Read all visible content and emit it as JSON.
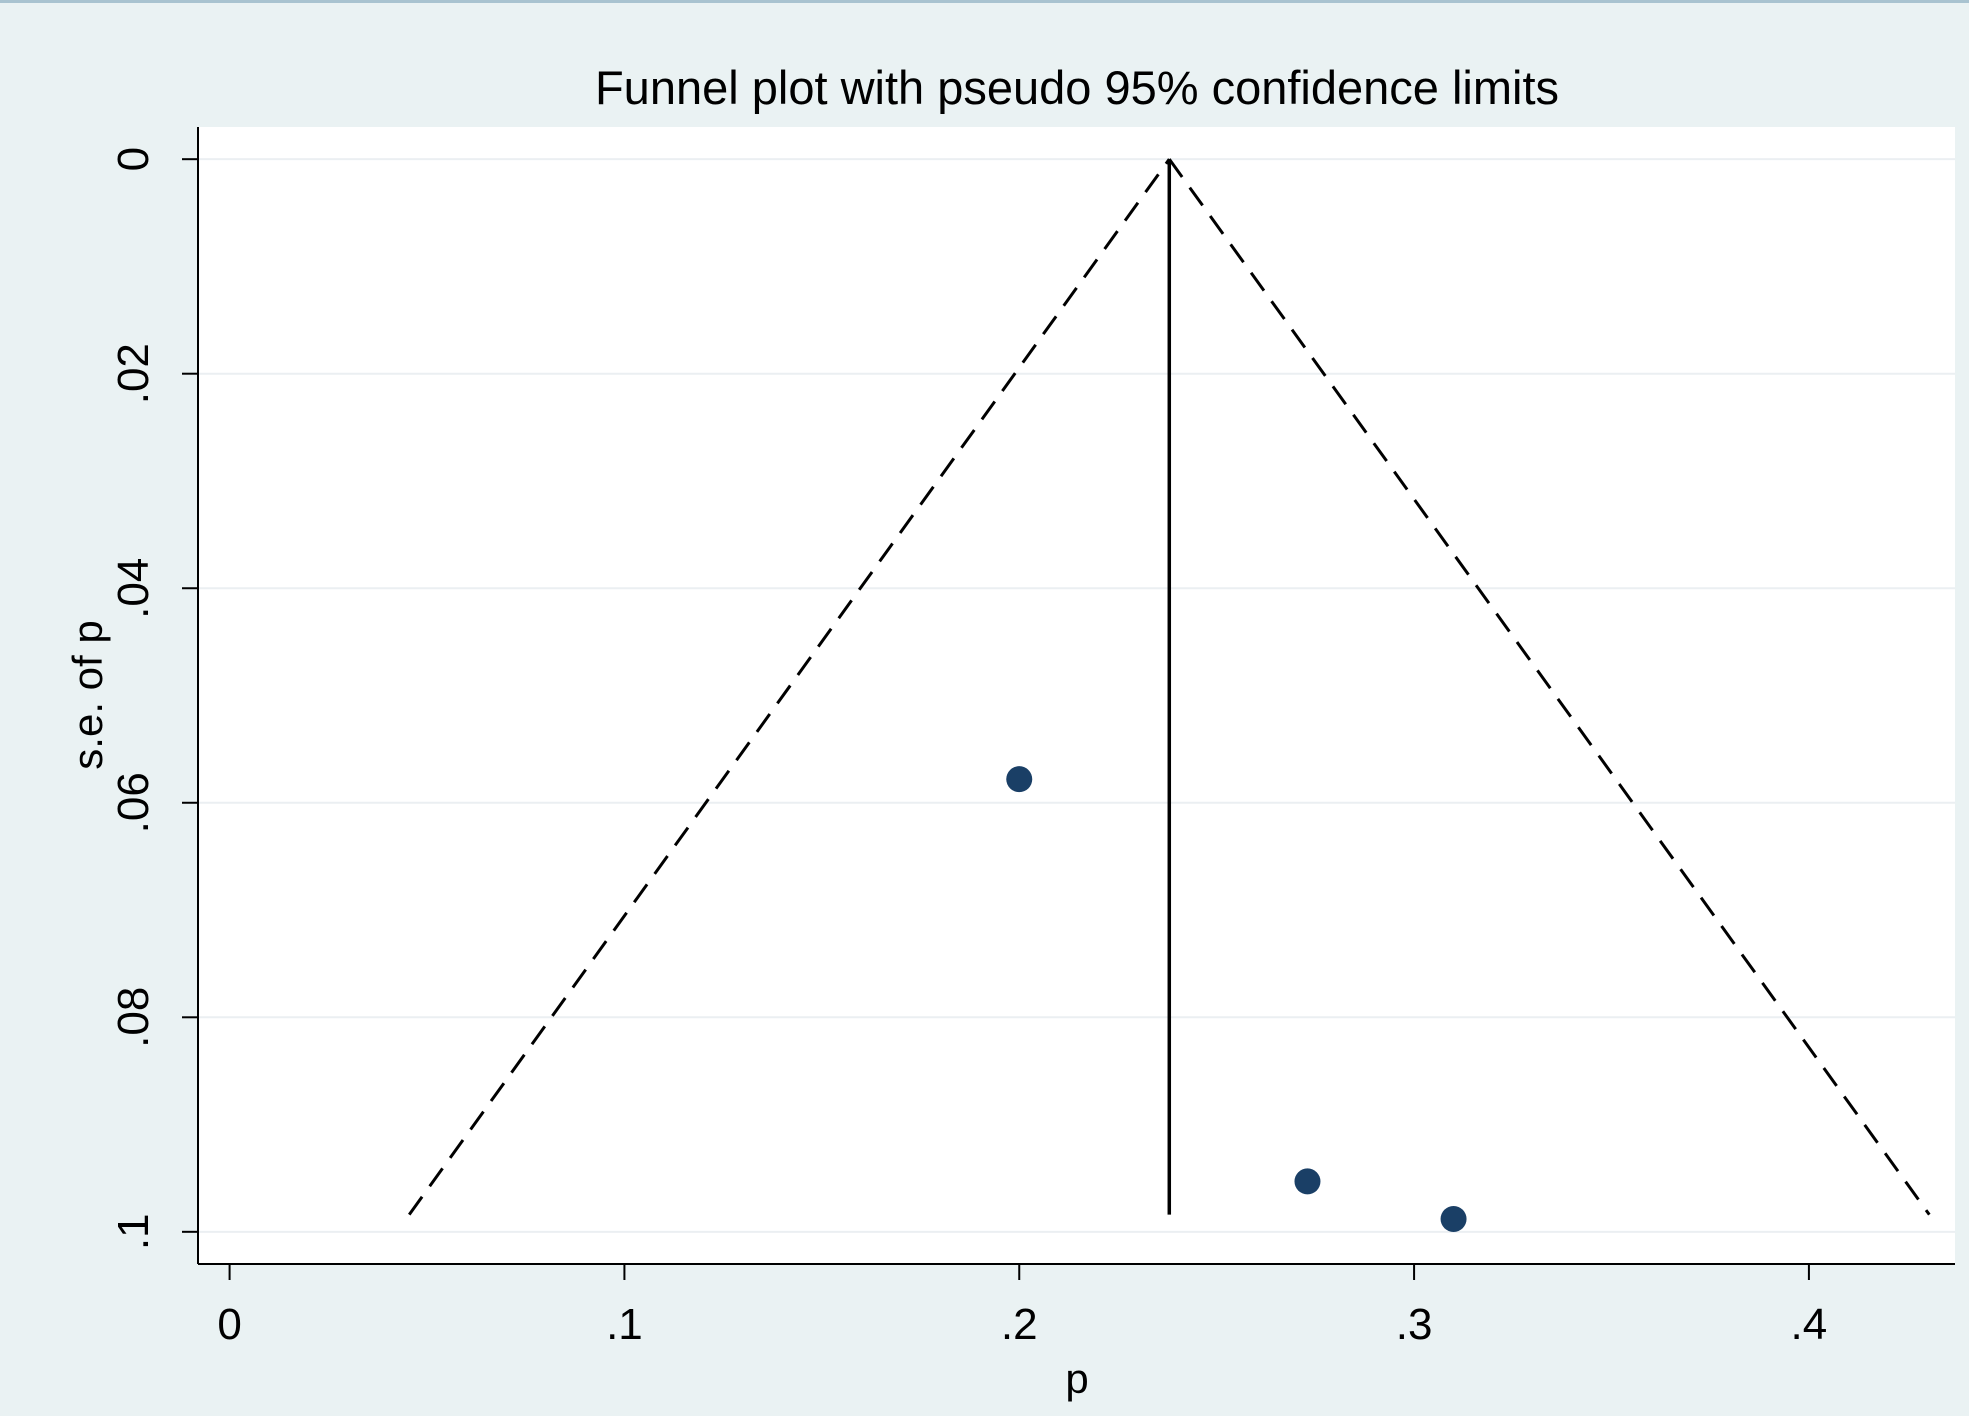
{
  "chart_data": {
    "type": "scatter",
    "title": "Funnel plot with pseudo 95% confidence limits",
    "xlabel": "p",
    "ylabel": "s.e. of p",
    "xlim": [
      -0.008,
      0.437
    ],
    "ylim": [
      0.103,
      -0.003
    ],
    "y_axis_reversed": true,
    "x_ticks": [
      {
        "value": 0,
        "label": "0"
      },
      {
        "value": 0.1,
        "label": ".1"
      },
      {
        "value": 0.2,
        "label": ".2"
      },
      {
        "value": 0.3,
        "label": ".3"
      },
      {
        "value": 0.4,
        "label": ".4"
      }
    ],
    "y_ticks": [
      {
        "value": 0,
        "label": "0"
      },
      {
        "value": 0.02,
        "label": ".02"
      },
      {
        "value": 0.04,
        "label": ".04"
      },
      {
        "value": 0.06,
        "label": ".06"
      },
      {
        "value": 0.08,
        "label": ".08"
      },
      {
        "value": 0.1,
        "label": ".1"
      }
    ],
    "grid": "horizontal",
    "points": [
      {
        "x": 0.2,
        "y": 0.0578
      },
      {
        "x": 0.273,
        "y": 0.0953
      },
      {
        "x": 0.31,
        "y": 0.0988
      }
    ],
    "pooled_estimate": 0.238,
    "confidence_limits": {
      "apex": [
        0.238,
        0
      ],
      "left_base": [
        0.0455,
        0.0984
      ],
      "right_base": [
        0.4305,
        0.0984
      ]
    },
    "colors": {
      "marker": "#1a3f66",
      "background": "#eaf2f3",
      "plot_region": "#ffffff",
      "grid": "#ebeff2",
      "lines": "#000000"
    }
  }
}
